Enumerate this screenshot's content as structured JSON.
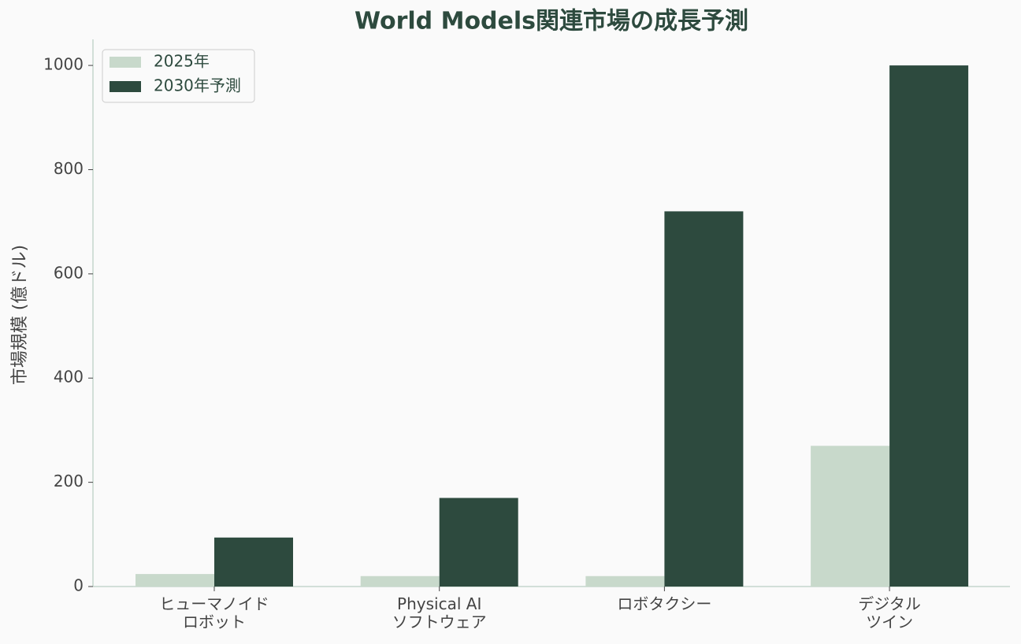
{
  "chart_data": {
    "type": "bar",
    "title": "World Models関連市場の成長予測",
    "y_label": "市場規模 (億ドル)",
    "categories": [
      "ヒューマノイド\nロボット",
      "Physical AI\nソフトウェア",
      "ロボタクシー",
      "デジタル\nツイン"
    ],
    "series": [
      {
        "name": "2025年",
        "color": "#c8d9cb",
        "values": [
          24,
          20,
          20,
          270
        ]
      },
      {
        "name": "2030年予測",
        "color": "#2d4a3e",
        "values": [
          94,
          170,
          720,
          1000
        ]
      }
    ],
    "ylim": [
      0,
      1050
    ],
    "yticks": [
      0,
      200,
      400,
      600,
      800,
      1000
    ],
    "grid": false,
    "legend": "upper-left"
  }
}
